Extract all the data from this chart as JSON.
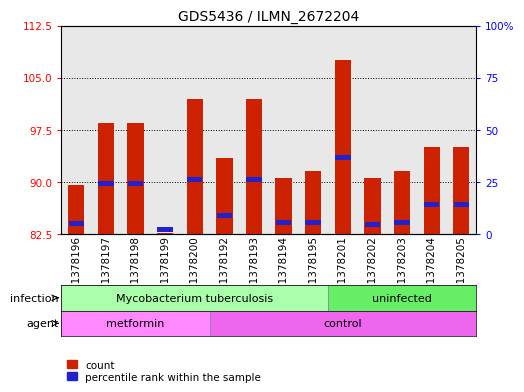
{
  "title": "GDS5436 / ILMN_2672204",
  "samples": [
    "GSM1378196",
    "GSM1378197",
    "GSM1378198",
    "GSM1378199",
    "GSM1378200",
    "GSM1378192",
    "GSM1378193",
    "GSM1378194",
    "GSM1378195",
    "GSM1378201",
    "GSM1378202",
    "GSM1378203",
    "GSM1378204",
    "GSM1378205"
  ],
  "red_values": [
    89.5,
    98.5,
    98.5,
    82.6,
    102.0,
    93.5,
    102.0,
    90.5,
    91.5,
    107.5,
    90.5,
    91.5,
    95.0,
    95.0
  ],
  "blue_values": [
    84.0,
    89.8,
    89.8,
    83.2,
    90.3,
    85.2,
    90.3,
    84.2,
    84.2,
    93.5,
    83.8,
    84.2,
    86.8,
    86.8
  ],
  "ymin": 82.5,
  "ymax": 112.5,
  "yticks": [
    82.5,
    90.0,
    97.5,
    105.0,
    112.5
  ],
  "y2min": 0,
  "y2max": 100,
  "y2ticks": [
    0,
    25,
    50,
    75,
    100
  ],
  "bar_color": "#cc2200",
  "blue_color": "#2222cc",
  "bar_width": 0.55,
  "infection_tb_color": "#aaffaa",
  "infection_un_color": "#66ee66",
  "agent_met_color": "#ff88ff",
  "agent_con_color": "#ee66ee",
  "infection_label": "infection",
  "agent_label": "agent",
  "legend_count": "count",
  "legend_percentile": "percentile rank within the sample",
  "title_fontsize": 10,
  "tick_fontsize": 7.5,
  "label_fontsize": 8,
  "row_fontsize": 8
}
